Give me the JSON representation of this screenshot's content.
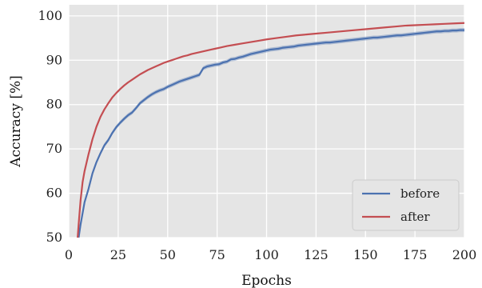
{
  "chart_data": {
    "type": "line",
    "title": "",
    "xlabel": "Epochs",
    "ylabel": "Accuracy [%]",
    "xlim": [
      0,
      200
    ],
    "ylim": [
      50,
      102.5
    ],
    "xticks": [
      0,
      25,
      50,
      75,
      100,
      125,
      150,
      175,
      200
    ],
    "yticks": [
      50,
      60,
      70,
      80,
      90,
      100
    ],
    "grid": true,
    "legend_position": "bottom-right",
    "background": "#e5e5e5",
    "series": [
      {
        "name": "before",
        "color": "#4c72b0",
        "band": true,
        "points": [
          [
            4,
            47.0
          ],
          [
            5,
            50.0
          ],
          [
            6,
            53.0
          ],
          [
            7,
            55.5
          ],
          [
            8,
            58.0
          ],
          [
            10,
            61.0
          ],
          [
            12,
            64.5
          ],
          [
            14,
            67.0
          ],
          [
            16,
            69.0
          ],
          [
            18,
            70.8
          ],
          [
            20,
            72.0
          ],
          [
            22,
            73.6
          ],
          [
            24,
            74.9
          ],
          [
            26,
            75.9
          ],
          [
            28,
            76.8
          ],
          [
            30,
            77.6
          ],
          [
            32,
            78.2
          ],
          [
            34,
            79.2
          ],
          [
            36,
            80.3
          ],
          [
            38,
            81.0
          ],
          [
            40,
            81.7
          ],
          [
            42,
            82.3
          ],
          [
            44,
            82.8
          ],
          [
            46,
            83.2
          ],
          [
            48,
            83.5
          ],
          [
            50,
            84.0
          ],
          [
            52,
            84.4
          ],
          [
            54,
            84.8
          ],
          [
            56,
            85.2
          ],
          [
            58,
            85.5
          ],
          [
            60,
            85.8
          ],
          [
            62,
            86.1
          ],
          [
            64,
            86.4
          ],
          [
            66,
            86.7
          ],
          [
            68,
            88.2
          ],
          [
            70,
            88.6
          ],
          [
            72,
            88.8
          ],
          [
            74,
            89.0
          ],
          [
            76,
            89.1
          ],
          [
            78,
            89.5
          ],
          [
            80,
            89.7
          ],
          [
            82,
            90.2
          ],
          [
            84,
            90.3
          ],
          [
            86,
            90.6
          ],
          [
            88,
            90.8
          ],
          [
            90,
            91.1
          ],
          [
            92,
            91.4
          ],
          [
            94,
            91.6
          ],
          [
            96,
            91.8
          ],
          [
            98,
            92.0
          ],
          [
            100,
            92.2
          ],
          [
            102,
            92.4
          ],
          [
            104,
            92.5
          ],
          [
            106,
            92.6
          ],
          [
            108,
            92.8
          ],
          [
            110,
            92.9
          ],
          [
            112,
            93.0
          ],
          [
            114,
            93.1
          ],
          [
            116,
            93.3
          ],
          [
            118,
            93.4
          ],
          [
            120,
            93.5
          ],
          [
            122,
            93.6
          ],
          [
            124,
            93.7
          ],
          [
            126,
            93.8
          ],
          [
            128,
            93.9
          ],
          [
            130,
            94.0
          ],
          [
            132,
            94.0
          ],
          [
            134,
            94.1
          ],
          [
            136,
            94.2
          ],
          [
            138,
            94.3
          ],
          [
            140,
            94.4
          ],
          [
            142,
            94.5
          ],
          [
            144,
            94.6
          ],
          [
            146,
            94.7
          ],
          [
            148,
            94.8
          ],
          [
            150,
            94.9
          ],
          [
            152,
            95.0
          ],
          [
            154,
            95.1
          ],
          [
            156,
            95.1
          ],
          [
            158,
            95.2
          ],
          [
            160,
            95.3
          ],
          [
            162,
            95.4
          ],
          [
            164,
            95.5
          ],
          [
            166,
            95.6
          ],
          [
            168,
            95.6
          ],
          [
            170,
            95.7
          ],
          [
            172,
            95.8
          ],
          [
            174,
            95.9
          ],
          [
            176,
            96.0
          ],
          [
            178,
            96.1
          ],
          [
            180,
            96.2
          ],
          [
            182,
            96.3
          ],
          [
            184,
            96.4
          ],
          [
            186,
            96.5
          ],
          [
            188,
            96.5
          ],
          [
            190,
            96.6
          ],
          [
            192,
            96.6
          ],
          [
            194,
            96.7
          ],
          [
            196,
            96.7
          ],
          [
            198,
            96.8
          ],
          [
            200,
            96.8
          ]
        ]
      },
      {
        "name": "after",
        "color": "#c44e52",
        "band": false,
        "points": [
          [
            4,
            47.0
          ],
          [
            5,
            53.0
          ],
          [
            6,
            58.5
          ],
          [
            7,
            62.5
          ],
          [
            8,
            65.0
          ],
          [
            10,
            68.8
          ],
          [
            12,
            72.2
          ],
          [
            14,
            75.0
          ],
          [
            16,
            77.2
          ],
          [
            18,
            78.9
          ],
          [
            20,
            80.3
          ],
          [
            22,
            81.6
          ],
          [
            24,
            82.6
          ],
          [
            26,
            83.5
          ],
          [
            28,
            84.3
          ],
          [
            30,
            85.0
          ],
          [
            32,
            85.6
          ],
          [
            34,
            86.2
          ],
          [
            36,
            86.8
          ],
          [
            38,
            87.3
          ],
          [
            40,
            87.8
          ],
          [
            42,
            88.2
          ],
          [
            44,
            88.6
          ],
          [
            46,
            89.0
          ],
          [
            48,
            89.4
          ],
          [
            50,
            89.7
          ],
          [
            52,
            90.0
          ],
          [
            54,
            90.3
          ],
          [
            56,
            90.6
          ],
          [
            58,
            90.9
          ],
          [
            60,
            91.1
          ],
          [
            62,
            91.4
          ],
          [
            64,
            91.6
          ],
          [
            66,
            91.8
          ],
          [
            68,
            92.0
          ],
          [
            70,
            92.2
          ],
          [
            72,
            92.4
          ],
          [
            74,
            92.6
          ],
          [
            76,
            92.8
          ],
          [
            78,
            93.0
          ],
          [
            80,
            93.2
          ],
          [
            84,
            93.5
          ],
          [
            88,
            93.8
          ],
          [
            92,
            94.1
          ],
          [
            96,
            94.4
          ],
          [
            100,
            94.7
          ],
          [
            105,
            95.0
          ],
          [
            110,
            95.3
          ],
          [
            115,
            95.6
          ],
          [
            120,
            95.8
          ],
          [
            125,
            96.0
          ],
          [
            130,
            96.2
          ],
          [
            135,
            96.4
          ],
          [
            140,
            96.6
          ],
          [
            145,
            96.8
          ],
          [
            150,
            97.0
          ],
          [
            155,
            97.2
          ],
          [
            160,
            97.4
          ],
          [
            165,
            97.6
          ],
          [
            170,
            97.8
          ],
          [
            175,
            97.9
          ],
          [
            180,
            98.0
          ],
          [
            185,
            98.1
          ],
          [
            190,
            98.2
          ],
          [
            195,
            98.3
          ],
          [
            200,
            98.4
          ]
        ]
      }
    ]
  }
}
